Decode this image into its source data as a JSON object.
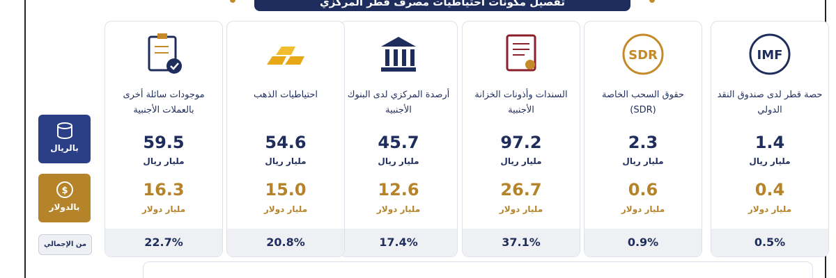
{
  "title": "تفصيل مكونات احتياطيات مصرف قطر المركزي",
  "row_labels": {
    "riyal": "بالريال",
    "dollar": "بالدولار",
    "share": "من الإجمالي"
  },
  "cards": [
    {
      "label": "حصة قطر لدى صندوق النقد الدولي",
      "icon_text": "IMF",
      "riyal": "1.4",
      "riyal_unit": "مليار ريال",
      "dollar": "0.4",
      "dollar_unit": "مليار دولار",
      "share": "0.5%"
    },
    {
      "label": "حقوق السحب الخاصة (SDR)",
      "icon_text": "SDR",
      "riyal": "2.3",
      "riyal_unit": "مليار ريال",
      "dollar": "0.6",
      "dollar_unit": "مليار دولار",
      "share": "0.9%"
    },
    {
      "label": "السندات وأذونات الخزانة الأجنبية",
      "riyal": "97.2",
      "riyal_unit": "مليار ريال",
      "dollar": "26.7",
      "dollar_unit": "مليار دولار",
      "share": "37.1%"
    },
    {
      "label": "أرصدة المركزي لدى البنوك الأجنبية",
      "riyal": "45.7",
      "riyal_unit": "مليار ريال",
      "dollar": "12.6",
      "dollar_unit": "مليار دولار",
      "share": "17.4%"
    },
    {
      "label": "احتياطيات الذهب",
      "riyal": "54.6",
      "riyal_unit": "مليار ريال",
      "dollar": "15.0",
      "dollar_unit": "مليار دولار",
      "share": "20.8%"
    },
    {
      "label": "موجودات سائلة أخرى بالعملات الأجنبية",
      "riyal": "59.5",
      "riyal_unit": "مليار ريال",
      "dollar": "16.3",
      "dollar_unit": "مليار دولار",
      "share": "22.7%"
    }
  ]
}
